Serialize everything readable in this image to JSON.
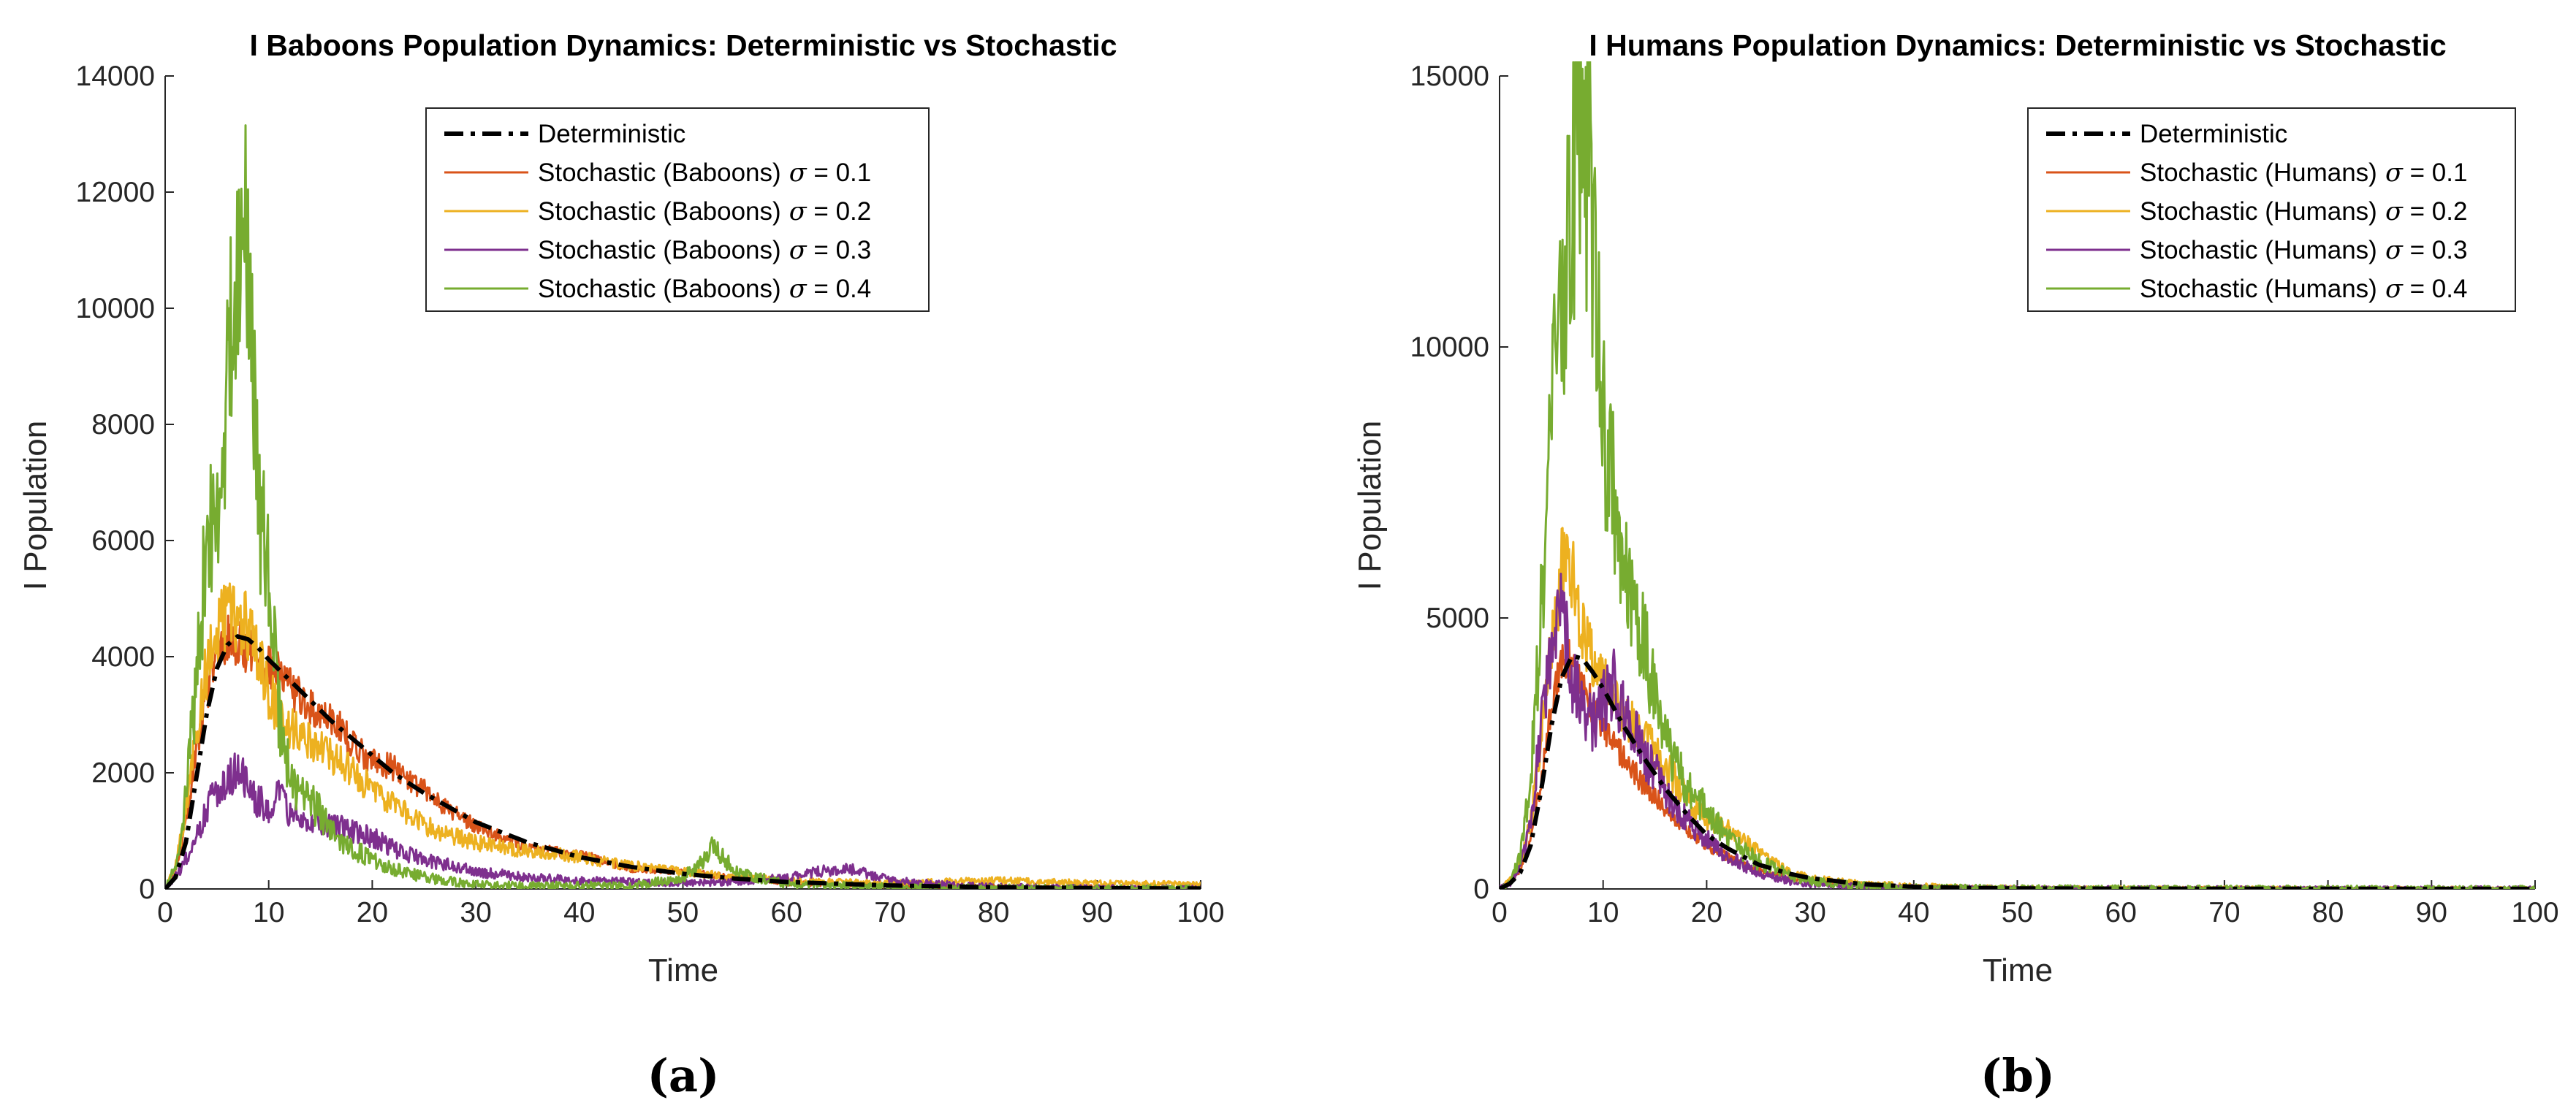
{
  "chart_data": [
    {
      "type": "line",
      "panel_label": "(a)",
      "title": "I Baboons Population Dynamics: Deterministic vs Stochastic",
      "xlabel": "Time",
      "ylabel": "I Population",
      "xlim": [
        0,
        100
      ],
      "ylim": [
        0,
        14000
      ],
      "xticks": [
        0,
        10,
        20,
        30,
        40,
        50,
        60,
        70,
        80,
        90,
        100
      ],
      "yticks": [
        0,
        2000,
        4000,
        6000,
        8000,
        10000,
        12000,
        14000
      ],
      "ytick_labels": [
        "0",
        "2000",
        "4000",
        "6000",
        "8000",
        "10000",
        "12000",
        "14000"
      ],
      "grid": false,
      "legend_position": "top-right",
      "series": [
        {
          "name": "Deterministic",
          "legend_label": "Deterministic",
          "sigma": null,
          "color": "#000000",
          "style": "dashdot",
          "x": [
            0,
            1,
            2,
            3,
            4,
            5,
            6,
            7,
            8,
            9,
            10,
            12,
            14,
            16,
            18,
            20,
            22,
            25,
            28,
            30,
            35,
            40,
            45,
            50,
            55,
            60,
            70,
            80,
            90,
            100
          ],
          "y": [
            0,
            200,
            800,
            1900,
            3000,
            3800,
            4200,
            4350,
            4300,
            4150,
            3950,
            3600,
            3250,
            2900,
            2600,
            2300,
            2000,
            1650,
            1350,
            1150,
            800,
            550,
            380,
            260,
            180,
            120,
            60,
            30,
            15,
            8
          ]
        },
        {
          "name": "Stochastic (Baboons) sigma = 0.1",
          "legend_label": "Stochastic (Baboons)",
          "sigma": "0.1",
          "color": "#d95319",
          "style": "solid",
          "x": [
            0,
            1,
            2,
            3,
            4,
            5,
            6,
            7,
            8,
            9,
            10,
            11,
            12,
            14,
            16,
            18,
            20,
            22,
            25,
            28,
            30,
            35,
            40,
            45,
            50,
            55,
            60,
            70,
            80,
            90,
            100
          ],
          "y": [
            0,
            300,
            1100,
            2400,
            3400,
            4000,
            4300,
            4200,
            4150,
            4000,
            3800,
            3700,
            3500,
            3100,
            3000,
            2500,
            2200,
            2100,
            1700,
            1300,
            1100,
            700,
            600,
            350,
            300,
            200,
            100,
            50,
            40,
            30,
            20
          ]
        },
        {
          "name": "Stochastic (Baboons) sigma = 0.2",
          "legend_label": "Stochastic (Baboons)",
          "sigma": "0.2",
          "color": "#edb120",
          "style": "solid",
          "x": [
            0,
            1,
            2,
            3,
            4,
            5,
            6,
            7,
            8,
            9,
            10,
            11,
            12,
            14,
            16,
            18,
            20,
            22,
            25,
            28,
            30,
            35,
            40,
            45,
            50,
            55,
            60,
            70,
            80,
            90,
            100
          ],
          "y": [
            0,
            400,
            1300,
            2700,
            3800,
            4400,
            4700,
            4600,
            4500,
            4000,
            3400,
            3000,
            2800,
            2600,
            2300,
            2000,
            1700,
            1500,
            1100,
            900,
            800,
            650,
            550,
            400,
            300,
            200,
            150,
            100,
            150,
            100,
            80
          ]
        },
        {
          "name": "Stochastic (Baboons) sigma = 0.3",
          "legend_label": "Stochastic (Baboons)",
          "sigma": "0.3",
          "color": "#7e2f8e",
          "style": "solid",
          "x": [
            0,
            1,
            2,
            3,
            4,
            5,
            6,
            7,
            8,
            9,
            10,
            11,
            12,
            14,
            16,
            18,
            20,
            22,
            25,
            28,
            30,
            35,
            40,
            45,
            50,
            55,
            60,
            63,
            66,
            68,
            70,
            75,
            80,
            90,
            100
          ],
          "y": [
            0,
            200,
            500,
            900,
            1400,
            1700,
            1900,
            2100,
            1700,
            1500,
            1400,
            1600,
            1300,
            1200,
            1100,
            1000,
            900,
            700,
            500,
            400,
            300,
            200,
            150,
            120,
            100,
            120,
            200,
            300,
            350,
            250,
            150,
            80,
            40,
            20,
            10
          ]
        },
        {
          "name": "Stochastic (Baboons) sigma = 0.4",
          "legend_label": "Stochastic (Baboons)",
          "sigma": "0.4",
          "color": "#77ac30",
          "style": "solid",
          "x": [
            0,
            1,
            2,
            3,
            4,
            5,
            6,
            6.5,
            7,
            7.5,
            8,
            8.5,
            9,
            10,
            11,
            12,
            13,
            14,
            15,
            16,
            18,
            20,
            22,
            25,
            28,
            30,
            35,
            40,
            45,
            50,
            52,
            53,
            55,
            60,
            70,
            80,
            90,
            100
          ],
          "y": [
            0,
            400,
            1600,
            3500,
            6000,
            6500,
            8500,
            10000,
            11000,
            12000,
            10500,
            9000,
            6500,
            5500,
            3000,
            2000,
            1600,
            1500,
            1300,
            1000,
            700,
            500,
            350,
            200,
            120,
            80,
            60,
            60,
            50,
            200,
            500,
            750,
            300,
            80,
            40,
            20,
            10,
            5
          ]
        }
      ]
    },
    {
      "type": "line",
      "panel_label": "(b)",
      "title": "I Humans Population Dynamics: Deterministic vs Stochastic",
      "xlabel": "Time",
      "ylabel": "I Population",
      "xlim": [
        0,
        100
      ],
      "ylim": [
        0,
        15000
      ],
      "xticks": [
        0,
        10,
        20,
        30,
        40,
        50,
        60,
        70,
        80,
        90,
        100
      ],
      "yticks": [
        0,
        5000,
        10000,
        15000
      ],
      "ytick_labels": [
        "0",
        "5000",
        "10000",
        "15000"
      ],
      "grid": false,
      "legend_position": "top-right",
      "series": [
        {
          "name": "Deterministic",
          "legend_label": "Deterministic",
          "sigma": null,
          "color": "#000000",
          "style": "dashdot",
          "x": [
            0,
            1,
            2,
            3,
            4,
            5,
            6,
            7,
            8,
            9,
            10,
            12,
            14,
            16,
            18,
            20,
            22,
            25,
            28,
            30,
            35,
            40,
            45,
            50,
            60,
            70,
            80,
            90,
            100
          ],
          "y": [
            0,
            100,
            300,
            800,
            1800,
            3000,
            3900,
            4300,
            4250,
            4000,
            3700,
            3000,
            2400,
            1850,
            1400,
            1000,
            750,
            450,
            280,
            200,
            90,
            40,
            20,
            10,
            5,
            3,
            2,
            1,
            1
          ]
        },
        {
          "name": "Stochastic (Humans) sigma = 0.1",
          "legend_label": "Stochastic (Humans)",
          "sigma": "0.1",
          "color": "#d95319",
          "style": "solid",
          "x": [
            0,
            1,
            2,
            3,
            4,
            5,
            6,
            7,
            8,
            9,
            10,
            12,
            14,
            16,
            18,
            20,
            22,
            25,
            28,
            30,
            35,
            40,
            45,
            50,
            60,
            70,
            80,
            90,
            100
          ],
          "y": [
            0,
            100,
            350,
            900,
            2000,
            3300,
            4100,
            4200,
            3700,
            3400,
            3000,
            2400,
            1900,
            1500,
            1100,
            800,
            600,
            350,
            200,
            150,
            60,
            30,
            15,
            8,
            4,
            2,
            1,
            1,
            1
          ]
        },
        {
          "name": "Stochastic (Humans) sigma = 0.2",
          "legend_label": "Stochastic (Humans)",
          "sigma": "0.2",
          "color": "#edb120",
          "style": "solid",
          "x": [
            0,
            1,
            2,
            3,
            4,
            5,
            6,
            6.5,
            7,
            8,
            9,
            10,
            11,
            12,
            14,
            16,
            18,
            20,
            22,
            23,
            25,
            28,
            30,
            35,
            40,
            45,
            50,
            60,
            70,
            80,
            90,
            100
          ],
          "y": [
            0,
            150,
            500,
            1200,
            2800,
            4500,
            6000,
            6300,
            5800,
            4800,
            4200,
            3800,
            3500,
            3200,
            2800,
            2300,
            1700,
            1300,
            1100,
            1000,
            700,
            300,
            200,
            100,
            60,
            30,
            20,
            10,
            5,
            3,
            2,
            1
          ]
        },
        {
          "name": "Stochastic (Humans) sigma = 0.3",
          "legend_label": "Stochastic (Humans)",
          "sigma": "0.3",
          "color": "#7e2f8e",
          "style": "solid",
          "x": [
            0,
            1,
            2,
            3,
            4,
            5,
            5.5,
            6,
            7,
            8,
            9,
            10,
            11,
            12,
            13,
            14,
            15,
            16,
            18,
            20,
            22,
            25,
            28,
            30,
            35,
            40,
            50,
            60,
            70,
            80,
            90,
            100
          ],
          "y": [
            0,
            100,
            400,
            1200,
            3000,
            4300,
            4700,
            5100,
            3900,
            3300,
            3000,
            3500,
            3800,
            3200,
            3000,
            2400,
            2200,
            1800,
            1300,
            900,
            600,
            300,
            150,
            100,
            40,
            20,
            8,
            4,
            2,
            1,
            1,
            1
          ]
        },
        {
          "name": "Stochastic (Humans) sigma = 0.4",
          "legend_label": "Stochastic (Humans)",
          "sigma": "0.4",
          "color": "#77ac30",
          "style": "solid",
          "x": [
            0,
            1,
            2,
            3,
            4,
            5,
            5.5,
            6,
            7,
            7.5,
            8,
            8.5,
            9,
            10,
            11,
            12,
            13,
            14,
            15,
            16,
            18,
            20,
            22,
            25,
            28,
            30,
            35,
            40,
            50,
            60,
            70,
            80,
            90,
            100
          ],
          "y": [
            0,
            150,
            600,
            2000,
            5000,
            8500,
            10500,
            11000,
            12500,
            14200,
            13000,
            13500,
            12000,
            8500,
            7500,
            6000,
            5500,
            4500,
            3500,
            2800,
            2000,
            1500,
            900,
            500,
            250,
            150,
            60,
            30,
            10,
            5,
            3,
            2,
            1,
            1
          ]
        }
      ]
    }
  ]
}
